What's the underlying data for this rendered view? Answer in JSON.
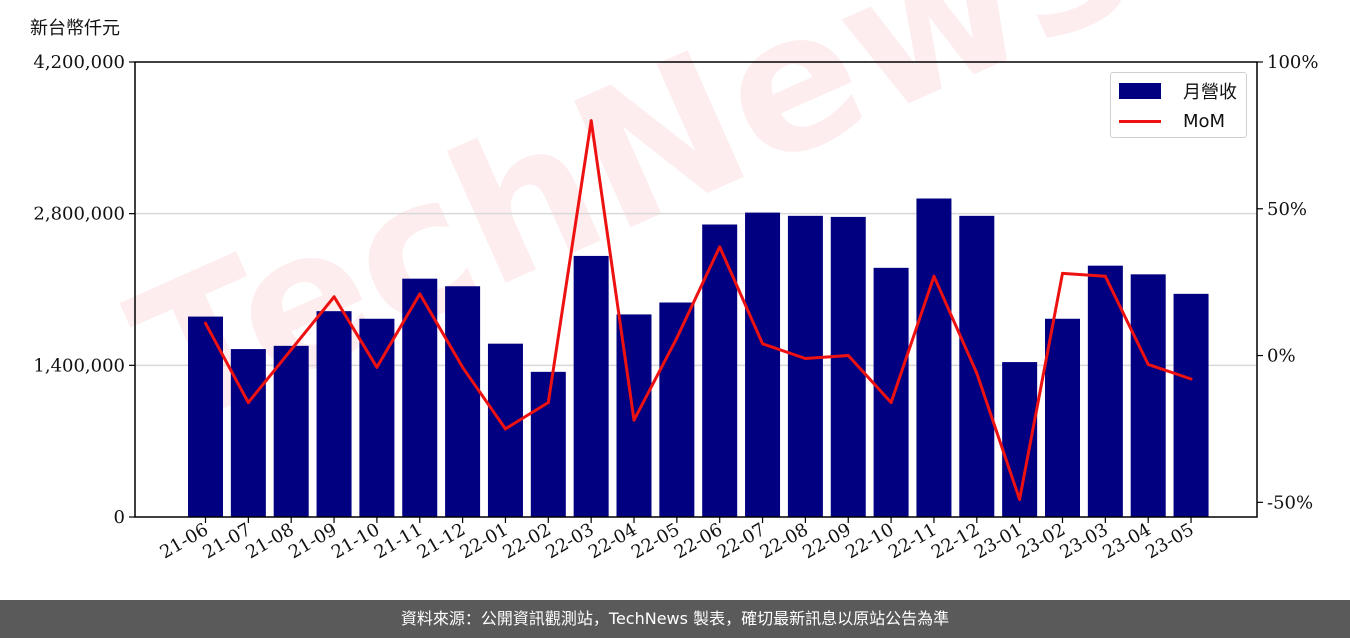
{
  "unit_label": "新台幣仟元",
  "footer": "資料來源：公開資訊觀測站，TechNews 製表，確切最新訊息以原站公告為準",
  "watermark": "TechNews",
  "colors": {
    "bar": "#000080",
    "line": "#ee1111",
    "grid": "#d9d9d9",
    "footer_bg": "#5a5a5a"
  },
  "chart_data": {
    "type": "bar",
    "categories": [
      "21-06",
      "21-07",
      "21-08",
      "21-09",
      "21-10",
      "21-11",
      "21-12",
      "22-01",
      "22-02",
      "22-03",
      "22-04",
      "22-05",
      "22-06",
      "22-07",
      "22-08",
      "22-09",
      "22-10",
      "22-11",
      "22-12",
      "23-01",
      "23-02",
      "23-03",
      "23-04",
      "23-05"
    ],
    "series": [
      {
        "name": "月營收",
        "type": "bar",
        "axis": "left",
        "values": [
          1850000,
          1550000,
          1580000,
          1900000,
          1830000,
          2200000,
          2130000,
          1600000,
          1340000,
          2410000,
          1870000,
          1980000,
          2700000,
          2810000,
          2780000,
          2770000,
          2300000,
          2940000,
          2780000,
          1430000,
          1830000,
          2320000,
          2240000,
          2060000
        ]
      },
      {
        "name": "MoM",
        "type": "line",
        "axis": "right",
        "unit": "%",
        "values": [
          11,
          -16,
          2,
          20,
          -4,
          21,
          -4,
          -25,
          -16,
          80,
          -22,
          6,
          37,
          4,
          -1,
          0,
          -16,
          27,
          -6,
          -49,
          28,
          27,
          -3,
          -8
        ]
      }
    ],
    "left_axis": {
      "min": 0,
      "max": 4200000,
      "ticks": [
        "0",
        "1,400,000",
        "2,800,000",
        "4,200,000"
      ],
      "tick_values": [
        0,
        1400000,
        2800000,
        4200000
      ]
    },
    "right_axis": {
      "min": -55,
      "max": 100,
      "ticks": [
        "-50%",
        "0%",
        "50%",
        "100%"
      ],
      "tick_values": [
        -50,
        0,
        50,
        100
      ]
    },
    "grid": "horizontal",
    "legend": "top-right"
  }
}
